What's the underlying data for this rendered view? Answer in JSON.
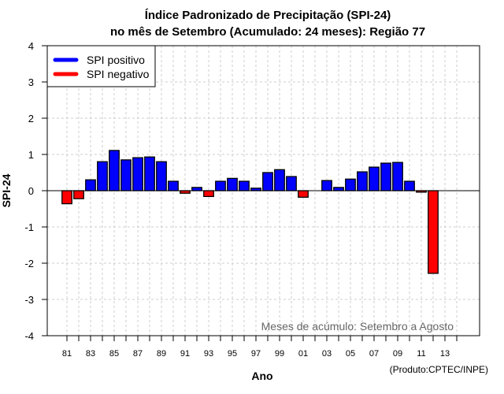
{
  "chart_data": {
    "type": "bar",
    "title": [
      "Índice Padronizado de Precipitação (SPI-24)",
      "no mês de Setembro (Acumulado: 24 meses): Região 77"
    ],
    "xlabel": "Ano",
    "ylabel": "SPI-24",
    "ylim": [
      -4,
      4
    ],
    "yticks": [
      4,
      3,
      2,
      1,
      0,
      -1,
      -2,
      -3,
      -4
    ],
    "grid": true,
    "categories": [
      "1981",
      "1982",
      "1983",
      "1984",
      "1985",
      "1986",
      "1987",
      "1988",
      "1989",
      "1990",
      "1991",
      "1992",
      "1993",
      "1994",
      "1995",
      "1996",
      "1997",
      "1998",
      "1999",
      "2000",
      "2001",
      "2002",
      "2003",
      "2004",
      "2005",
      "2006",
      "2007",
      "2008",
      "2009",
      "2010",
      "2011",
      "2012",
      "2013",
      "2014"
    ],
    "xtick_labels": [
      "81",
      "83",
      "85",
      "87",
      "89",
      "91",
      "93",
      "95",
      "97",
      "99",
      "01",
      "03",
      "05",
      "07",
      "09",
      "11",
      "13"
    ],
    "values": [
      -0.36,
      -0.22,
      0.3,
      0.8,
      1.11,
      0.85,
      0.91,
      0.93,
      0.8,
      0.26,
      -0.07,
      0.09,
      -0.16,
      0.26,
      0.34,
      0.26,
      0.07,
      0.5,
      0.58,
      0.39,
      -0.18,
      null,
      0.28,
      0.09,
      0.32,
      0.52,
      0.65,
      0.76,
      0.78,
      0.26,
      -0.04,
      -2.28,
      null,
      null
    ],
    "legend": {
      "placement": "top-left",
      "entries": [
        {
          "label": "SPI positivo",
          "color": "#0000ff"
        },
        {
          "label": "SPI negativo",
          "color": "#ff0000"
        }
      ]
    },
    "annotation": "Meses de acúmulo: Setembro a Agosto",
    "credit": "(Produto:CPTEC/INPE)",
    "colors": {
      "positive": "#0000ff",
      "negative": "#ff0000",
      "grid": "#cccccc",
      "annotation": "#666666"
    }
  }
}
